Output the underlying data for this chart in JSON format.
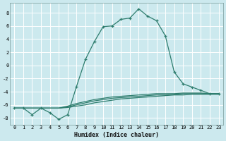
{
  "xlabel": "Humidex (Indice chaleur)",
  "ylabel": "",
  "background_color": "#cce9ee",
  "grid_color": "#ffffff",
  "line_color": "#2e7d6e",
  "xlim": [
    -0.5,
    23.5
  ],
  "ylim": [
    -9.0,
    9.5
  ],
  "yticks": [
    -8,
    -6,
    -4,
    -2,
    0,
    2,
    4,
    6,
    8
  ],
  "xticks": [
    0,
    1,
    2,
    3,
    4,
    5,
    6,
    7,
    8,
    9,
    10,
    11,
    12,
    13,
    14,
    15,
    16,
    17,
    18,
    19,
    20,
    21,
    22,
    23
  ],
  "main_series": {
    "x": [
      0,
      1,
      2,
      3,
      4,
      5,
      6,
      7,
      8,
      9,
      10,
      11,
      12,
      13,
      14,
      15,
      16,
      17,
      18,
      19,
      20,
      21,
      22,
      23
    ],
    "y": [
      -6.5,
      -6.5,
      -7.5,
      -6.5,
      -7.2,
      -8.2,
      -7.5,
      -3.2,
      0.9,
      3.6,
      5.9,
      6.0,
      7.0,
      7.2,
      8.6,
      7.5,
      6.8,
      4.5,
      -1.0,
      -2.8,
      -3.3,
      -3.8,
      -4.3,
      -4.3
    ]
  },
  "flat_series": [
    {
      "x": [
        0,
        5,
        6,
        7,
        8,
        9,
        10,
        11,
        12,
        13,
        14,
        15,
        16,
        17,
        18,
        19,
        20,
        21,
        22,
        23
      ],
      "y": [
        -6.5,
        -6.5,
        -6.2,
        -5.8,
        -5.5,
        -5.2,
        -5.0,
        -4.8,
        -4.7,
        -4.6,
        -4.5,
        -4.4,
        -4.3,
        -4.3,
        -4.3,
        -4.2,
        -4.2,
        -4.2,
        -4.3,
        -4.3
      ]
    },
    {
      "x": [
        0,
        5,
        6,
        7,
        8,
        9,
        10,
        11,
        12,
        13,
        14,
        15,
        16,
        17,
        18,
        19,
        20,
        21,
        22,
        23
      ],
      "y": [
        -6.5,
        -6.5,
        -6.3,
        -6.0,
        -5.7,
        -5.4,
        -5.2,
        -5.0,
        -4.9,
        -4.8,
        -4.7,
        -4.6,
        -4.5,
        -4.5,
        -4.4,
        -4.3,
        -4.3,
        -4.3,
        -4.3,
        -4.3
      ]
    },
    {
      "x": [
        0,
        5,
        6,
        7,
        8,
        9,
        10,
        11,
        12,
        13,
        14,
        15,
        16,
        17,
        18,
        19,
        20,
        21,
        22,
        23
      ],
      "y": [
        -6.5,
        -6.5,
        -6.4,
        -6.2,
        -6.0,
        -5.7,
        -5.5,
        -5.3,
        -5.1,
        -5.0,
        -4.9,
        -4.8,
        -4.7,
        -4.6,
        -4.5,
        -4.5,
        -4.4,
        -4.4,
        -4.4,
        -4.4
      ]
    }
  ]
}
